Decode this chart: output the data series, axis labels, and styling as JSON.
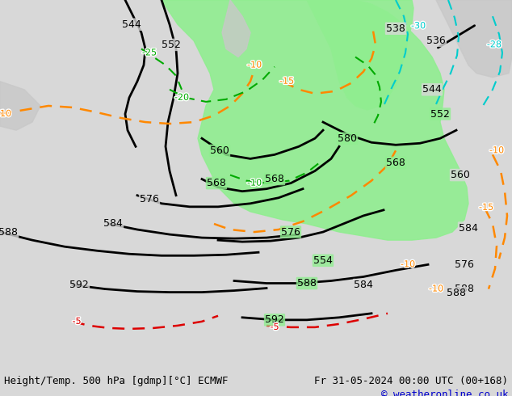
{
  "title_left": "Height/Temp. 500 hPa [gdmp][°C] ECMWF",
  "title_right": "Fr 31-05-2024 00:00 UTC (00+168)",
  "copyright": "© weatheronline.co.uk",
  "bg_color": "#d8d8d8",
  "land_color": "#e8e8e8",
  "green_region_color": "#90ee90",
  "map_border_color": "#888888",
  "bottom_bar_color": "#ffffff",
  "bottom_text_color": "#000000",
  "copyright_color": "#0000cc",
  "figsize": [
    6.34,
    4.9
  ],
  "dpi": 100
}
